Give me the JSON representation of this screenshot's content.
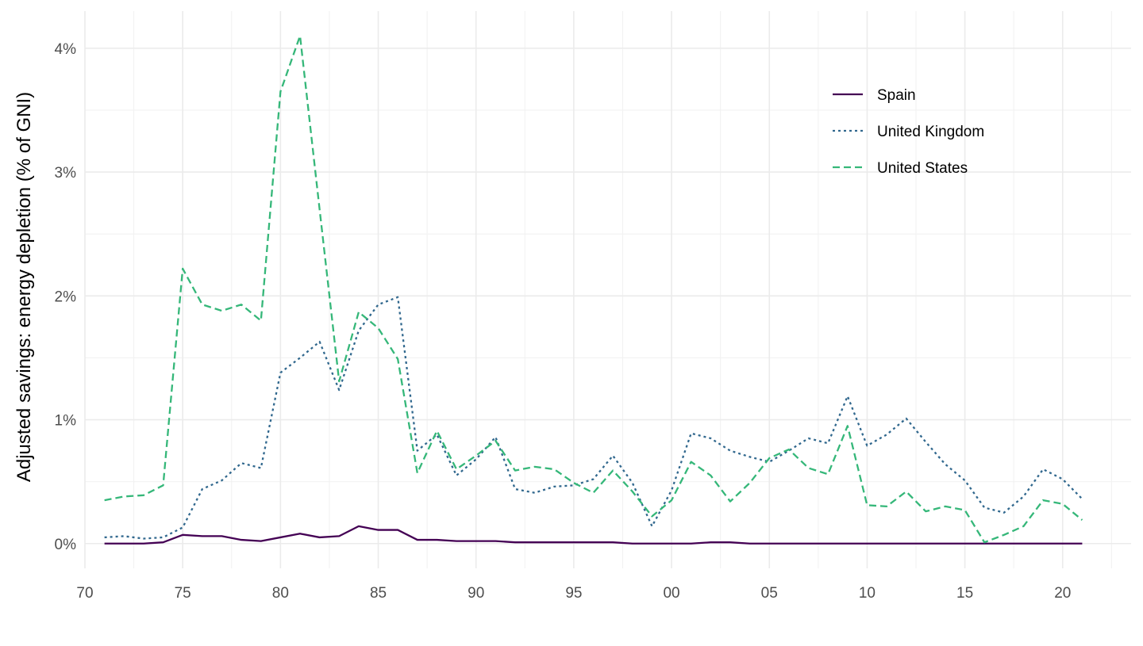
{
  "chart_data": {
    "type": "line",
    "title": "",
    "xlabel": "",
    "ylabel": "Adjusted savings: energy depletion (% of GNI)",
    "x": [
      1971,
      1972,
      1973,
      1974,
      1975,
      1976,
      1977,
      1978,
      1979,
      1980,
      1981,
      1982,
      1983,
      1984,
      1985,
      1986,
      1987,
      1988,
      1989,
      1990,
      1991,
      1992,
      1993,
      1994,
      1995,
      1996,
      1997,
      1998,
      1999,
      2000,
      2001,
      2002,
      2003,
      2004,
      2005,
      2006,
      2007,
      2008,
      2009,
      2010,
      2011,
      2012,
      2013,
      2014,
      2015,
      2016,
      2017,
      2018,
      2019,
      2020,
      2021
    ],
    "xlim": [
      1970,
      2023.5
    ],
    "ylim": [
      -0.2,
      4.3
    ],
    "x_ticks": [
      1970,
      1975,
      1980,
      1985,
      1990,
      1995,
      2000,
      2005,
      2010,
      2015,
      2020
    ],
    "x_tick_labels": [
      "70",
      "75",
      "80",
      "85",
      "90",
      "95",
      "00",
      "05",
      "10",
      "15",
      "20"
    ],
    "y_ticks": [
      0,
      1,
      2,
      3,
      4
    ],
    "y_tick_labels": [
      "0%",
      "1%",
      "2%",
      "3%",
      "4%"
    ],
    "grid": true,
    "legend_position": "top-right",
    "series": [
      {
        "name": "Spain",
        "color": "#440154",
        "dash": "solid",
        "values": [
          0.0,
          0.0,
          0.0,
          0.01,
          0.07,
          0.06,
          0.06,
          0.03,
          0.02,
          0.05,
          0.08,
          0.05,
          0.06,
          0.14,
          0.11,
          0.11,
          0.03,
          0.03,
          0.02,
          0.02,
          0.02,
          0.01,
          0.01,
          0.01,
          0.01,
          0.01,
          0.01,
          0.0,
          0.0,
          0.0,
          0.0,
          0.01,
          0.01,
          0.0,
          0.0,
          0.0,
          0.0,
          0.0,
          0.0,
          0.0,
          0.0,
          0.0,
          0.0,
          0.0,
          0.0,
          0.0,
          0.0,
          0.0,
          0.0,
          0.0,
          0.0
        ]
      },
      {
        "name": "United Kingdom",
        "color": "#31688e",
        "dash": "dotted",
        "values": [
          0.05,
          0.06,
          0.04,
          0.05,
          0.13,
          0.44,
          0.51,
          0.65,
          0.61,
          1.38,
          1.5,
          1.63,
          1.24,
          1.72,
          1.93,
          1.99,
          0.75,
          0.88,
          0.55,
          0.68,
          0.86,
          0.44,
          0.41,
          0.46,
          0.47,
          0.52,
          0.71,
          0.49,
          0.14,
          0.43,
          0.89,
          0.85,
          0.75,
          0.7,
          0.66,
          0.75,
          0.85,
          0.81,
          1.19,
          0.79,
          0.88,
          1.01,
          0.82,
          0.64,
          0.51,
          0.29,
          0.25,
          0.38,
          0.6,
          0.52,
          0.36
        ]
      },
      {
        "name": "United States",
        "color": "#35b779",
        "dash": "dashed",
        "values": [
          0.35,
          0.38,
          0.39,
          0.47,
          2.22,
          1.93,
          1.88,
          1.93,
          1.8,
          3.65,
          4.1,
          2.7,
          1.31,
          1.87,
          1.74,
          1.49,
          0.57,
          0.91,
          0.6,
          0.71,
          0.83,
          0.59,
          0.62,
          0.6,
          0.49,
          0.41,
          0.59,
          0.42,
          0.22,
          0.35,
          0.66,
          0.55,
          0.34,
          0.49,
          0.69,
          0.76,
          0.61,
          0.56,
          0.95,
          0.31,
          0.3,
          0.42,
          0.26,
          0.3,
          0.27,
          0.01,
          0.07,
          0.14,
          0.35,
          0.32,
          0.19
        ]
      }
    ]
  }
}
